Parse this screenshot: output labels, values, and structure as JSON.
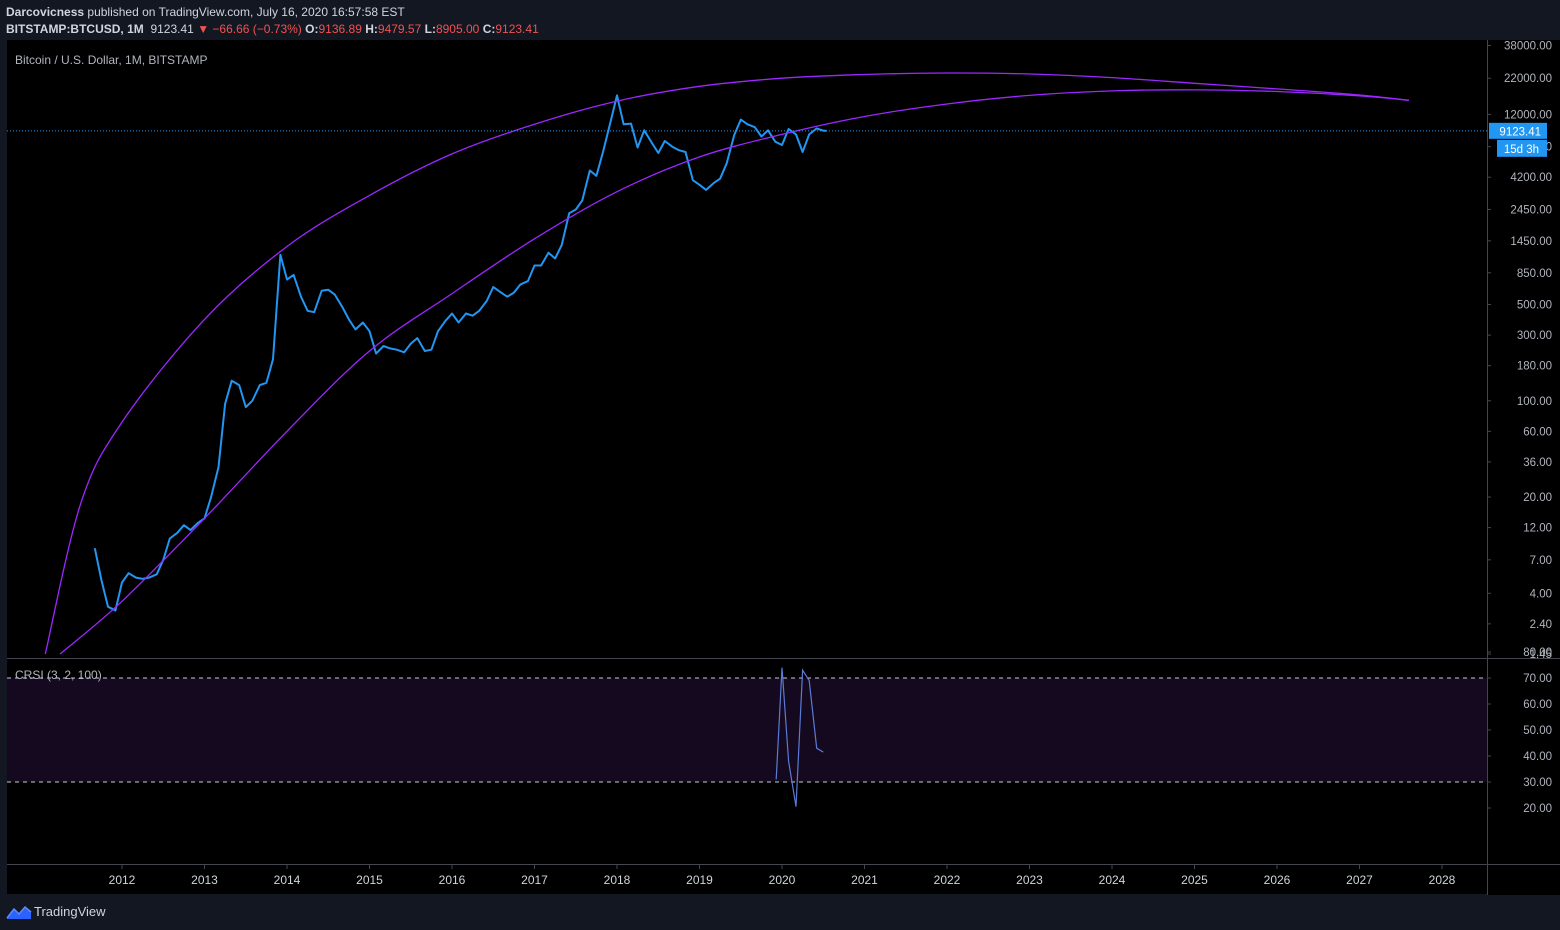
{
  "header": {
    "author": "Darcovicness",
    "published_text": "published on TradingView.com, July 16, 2020 16:57:58 EST",
    "symbol": "BITSTAMP:BTCUSD, 1M",
    "last": "9123.41",
    "change": "▼ −66.66 (−0.73%)",
    "open_label": "O:",
    "open": "9136.89",
    "high_label": "H:",
    "high": "9479.57",
    "low_label": "L:",
    "low": "8905.00",
    "close_label": "C:",
    "close": "9123.41"
  },
  "footer": {
    "brand": "TradingView",
    "logo_icon": "tradingview-logo-icon"
  },
  "colors": {
    "background": "#000000",
    "price_line": "#2196f3",
    "curve": "#9c27ff",
    "crsi_line": "#5b7bd5",
    "crsi_band": "#14091f",
    "text": "#d1d4dc",
    "axis_text": "#b2b5be",
    "last_price_tag": "#2196f3",
    "down": "#ef5350"
  },
  "chart_data": [
    {
      "type": "line",
      "title": "Bitcoin / U.S. Dollar, 1M, BITSTAMP",
      "scale": "log",
      "ylim": [
        1.45,
        38000
      ],
      "xlim": [
        2011.0,
        2028.9
      ],
      "y_ticks": [
        "38000.00",
        "22000.00",
        "12000.00",
        "7000.00",
        "4200.00",
        "2450.00",
        "1450.00",
        "850.00",
        "500.00",
        "300.00",
        "180.00",
        "100.00",
        "60.00",
        "36.00",
        "20.00",
        "12.00",
        "7.00",
        "4.00",
        "2.40",
        "1.45"
      ],
      "x_ticks": [
        "2012",
        "2013",
        "2014",
        "2015",
        "2016",
        "2017",
        "2018",
        "2019",
        "2020",
        "2021",
        "2022",
        "2023",
        "2024",
        "2025",
        "2026",
        "2027",
        "2028"
      ],
      "last_price": {
        "value": 9123.41,
        "label": "9123.41",
        "countdown": "15d 3h"
      },
      "series": [
        {
          "style": "line",
          "points": [
            [
              2011.67,
              8.5
            ],
            [
              2011.75,
              5.0
            ],
            [
              2011.83,
              3.2
            ],
            [
              2011.92,
              3.0
            ],
            [
              2012.0,
              4.8
            ],
            [
              2012.08,
              5.6
            ],
            [
              2012.17,
              5.2
            ],
            [
              2012.25,
              5.1
            ],
            [
              2012.33,
              5.2
            ],
            [
              2012.42,
              5.5
            ],
            [
              2012.5,
              7.0
            ],
            [
              2012.58,
              10.0
            ],
            [
              2012.67,
              11.0
            ],
            [
              2012.75,
              12.5
            ],
            [
              2012.83,
              11.5
            ],
            [
              2012.92,
              13.0
            ],
            [
              2013.0,
              14.0
            ],
            [
              2013.08,
              20.0
            ],
            [
              2013.17,
              33.0
            ],
            [
              2013.25,
              95.0
            ],
            [
              2013.33,
              140.0
            ],
            [
              2013.42,
              130.0
            ],
            [
              2013.5,
              90.0
            ],
            [
              2013.58,
              100.0
            ],
            [
              2013.67,
              130.0
            ],
            [
              2013.75,
              135.0
            ],
            [
              2013.83,
              200.0
            ],
            [
              2013.92,
              1150.0
            ],
            [
              2014.0,
              760.0
            ],
            [
              2014.08,
              820.0
            ],
            [
              2014.17,
              570.0
            ],
            [
              2014.25,
              450.0
            ],
            [
              2014.33,
              440.0
            ],
            [
              2014.42,
              630.0
            ],
            [
              2014.5,
              640.0
            ],
            [
              2014.58,
              590.0
            ],
            [
              2014.67,
              480.0
            ],
            [
              2014.75,
              390.0
            ],
            [
              2014.83,
              330.0
            ],
            [
              2014.92,
              370.0
            ],
            [
              2015.0,
              320.0
            ],
            [
              2015.08,
              220.0
            ],
            [
              2015.17,
              250.0
            ],
            [
              2015.25,
              240.0
            ],
            [
              2015.33,
              235.0
            ],
            [
              2015.42,
              225.0
            ],
            [
              2015.5,
              260.0
            ],
            [
              2015.58,
              285.0
            ],
            [
              2015.67,
              230.0
            ],
            [
              2015.75,
              235.0
            ],
            [
              2015.83,
              320.0
            ],
            [
              2015.92,
              380.0
            ],
            [
              2016.0,
              430.0
            ],
            [
              2016.08,
              370.0
            ],
            [
              2016.17,
              430.0
            ],
            [
              2016.25,
              415.0
            ],
            [
              2016.33,
              450.0
            ],
            [
              2016.42,
              530.0
            ],
            [
              2016.5,
              670.0
            ],
            [
              2016.58,
              620.0
            ],
            [
              2016.67,
              570.0
            ],
            [
              2016.75,
              610.0
            ],
            [
              2016.83,
              700.0
            ],
            [
              2016.92,
              740.0
            ],
            [
              2017.0,
              960.0
            ],
            [
              2017.08,
              960.0
            ],
            [
              2017.17,
              1190.0
            ],
            [
              2017.25,
              1080.0
            ],
            [
              2017.33,
              1350.0
            ],
            [
              2017.42,
              2300.0
            ],
            [
              2017.5,
              2450.0
            ],
            [
              2017.58,
              2850.0
            ],
            [
              2017.67,
              4700.0
            ],
            [
              2017.75,
              4300.0
            ],
            [
              2017.83,
              6400.0
            ],
            [
              2017.92,
              10500.0
            ],
            [
              2018.0,
              16500.0
            ],
            [
              2018.08,
              10200.0
            ],
            [
              2018.17,
              10300.0
            ],
            [
              2018.25,
              6900.0
            ],
            [
              2018.33,
              9200.0
            ],
            [
              2018.42,
              7500.0
            ],
            [
              2018.5,
              6300.0
            ],
            [
              2018.58,
              7700.0
            ],
            [
              2018.67,
              7000.0
            ],
            [
              2018.75,
              6600.0
            ],
            [
              2018.83,
              6400.0
            ],
            [
              2018.92,
              4000.0
            ],
            [
              2019.0,
              3700.0
            ],
            [
              2019.08,
              3400.0
            ],
            [
              2019.17,
              3800.0
            ],
            [
              2019.25,
              4100.0
            ],
            [
              2019.33,
              5300.0
            ],
            [
              2019.42,
              8500.0
            ],
            [
              2019.5,
              11000.0
            ],
            [
              2019.58,
              10200.0
            ],
            [
              2019.67,
              9700.0
            ],
            [
              2019.75,
              8300.0
            ],
            [
              2019.83,
              9200.0
            ],
            [
              2019.92,
              7600.0
            ],
            [
              2020.0,
              7200.0
            ],
            [
              2020.08,
              9400.0
            ],
            [
              2020.17,
              8600.0
            ],
            [
              2020.25,
              6400.0
            ],
            [
              2020.33,
              8600.0
            ],
            [
              2020.42,
              9500.0
            ],
            [
              2020.5,
              9136.89
            ],
            [
              2020.54,
              9123.41
            ]
          ]
        },
        {
          "style": "curve",
          "points": [
            [
              2011.07,
              1.45
            ],
            [
              2011.5,
              18.0
            ],
            [
              2012.0,
              70.0
            ],
            [
              2013.0,
              390.0
            ],
            [
              2014.0,
              1320.0
            ],
            [
              2015.0,
              3100.0
            ],
            [
              2016.0,
              6200.0
            ],
            [
              2017.0,
              10200.0
            ],
            [
              2018.0,
              15000.0
            ],
            [
              2019.0,
              19200.0
            ],
            [
              2020.0,
              22000.0
            ],
            [
              2021.0,
              23400.0
            ],
            [
              2022.0,
              24000.0
            ],
            [
              2023.0,
              23600.0
            ],
            [
              2024.0,
              22200.0
            ],
            [
              2025.0,
              20200.0
            ],
            [
              2026.0,
              18400.0
            ],
            [
              2027.0,
              16600.0
            ],
            [
              2027.6,
              15200.0
            ]
          ]
        },
        {
          "style": "curve",
          "points": [
            [
              2011.25,
              1.45
            ],
            [
              2012.0,
              3.5
            ],
            [
              2013.0,
              14.0
            ],
            [
              2014.0,
              60.0
            ],
            [
              2015.0,
              230.0
            ],
            [
              2016.0,
              600.0
            ],
            [
              2017.0,
              1500.0
            ],
            [
              2018.0,
              3300.0
            ],
            [
              2019.0,
              5900.0
            ],
            [
              2020.0,
              8600.0
            ],
            [
              2021.0,
              11600.0
            ],
            [
              2022.0,
              14300.0
            ],
            [
              2023.0,
              16500.0
            ],
            [
              2024.0,
              17800.0
            ],
            [
              2025.0,
              18100.0
            ],
            [
              2026.0,
              17600.0
            ],
            [
              2027.0,
              16400.0
            ],
            [
              2027.6,
              15200.0
            ]
          ]
        }
      ]
    },
    {
      "type": "line",
      "title": "CRSI (3, 2, 100)",
      "ylim": [
        15,
        80
      ],
      "y_ticks": [
        "80.00",
        "70.00",
        "60.00",
        "50.00",
        "40.00",
        "30.00",
        "20.00"
      ],
      "bands": [
        30,
        70
      ],
      "series": [
        {
          "points": [
            [
              2019.93,
              31.0
            ],
            [
              2020.0,
              74.0
            ],
            [
              2020.08,
              38.0
            ],
            [
              2020.17,
              20.5
            ],
            [
              2020.25,
              73.0
            ],
            [
              2020.33,
              69.0
            ],
            [
              2020.42,
              43.0
            ],
            [
              2020.5,
              41.5
            ]
          ]
        }
      ]
    }
  ]
}
